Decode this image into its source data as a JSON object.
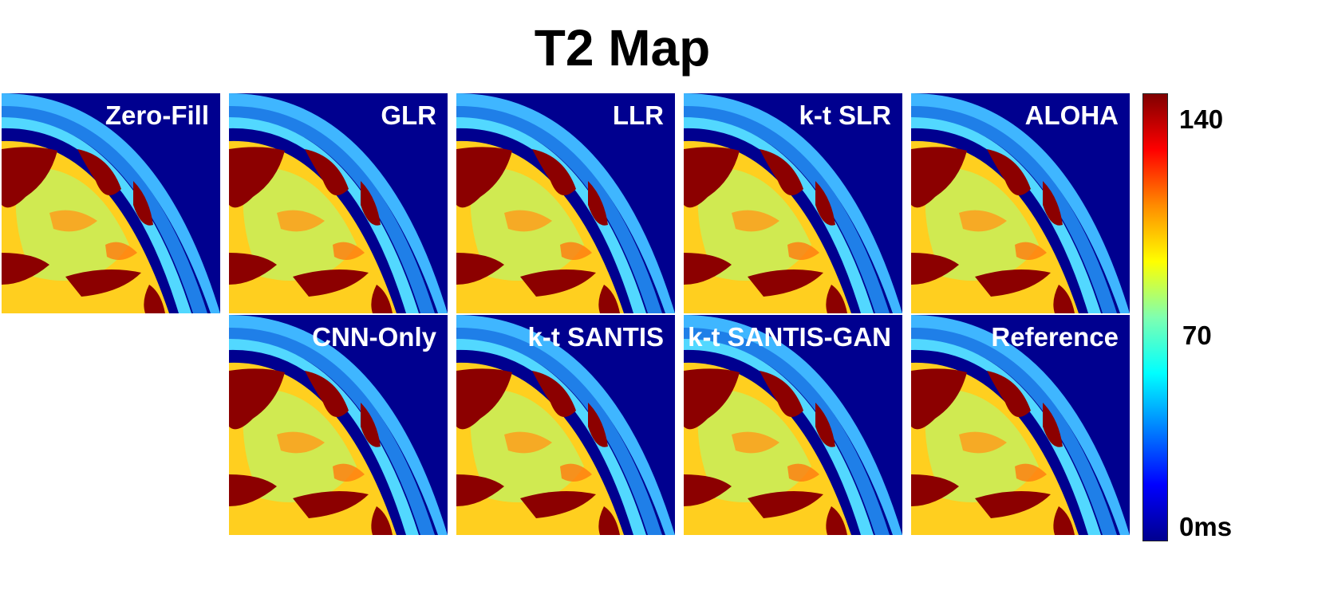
{
  "figure": {
    "title": "T2 Map"
  },
  "panels": [
    {
      "label": "Zero-Fill",
      "row": 0,
      "col": 0
    },
    {
      "label": "GLR",
      "row": 0,
      "col": 1
    },
    {
      "label": "LLR",
      "row": 0,
      "col": 2
    },
    {
      "label": "k-t SLR",
      "row": 0,
      "col": 3
    },
    {
      "label": "ALOHA",
      "row": 0,
      "col": 4
    },
    {
      "label": "CNN-Only",
      "row": 1,
      "col": 1
    },
    {
      "label": "k-t SANTIS",
      "row": 1,
      "col": 2
    },
    {
      "label": "k-t SANTIS-GAN",
      "row": 1,
      "col": 3
    },
    {
      "label": "Reference",
      "row": 1,
      "col": 4
    }
  ],
  "colorbar": {
    "ticks": [
      "140",
      "70",
      "0ms"
    ],
    "colors": [
      "#800000",
      "#ff0000",
      "#ff8c00",
      "#ffff00",
      "#7fffb0",
      "#00ffff",
      "#0080ff",
      "#0000ff",
      "#00008f"
    ]
  }
}
